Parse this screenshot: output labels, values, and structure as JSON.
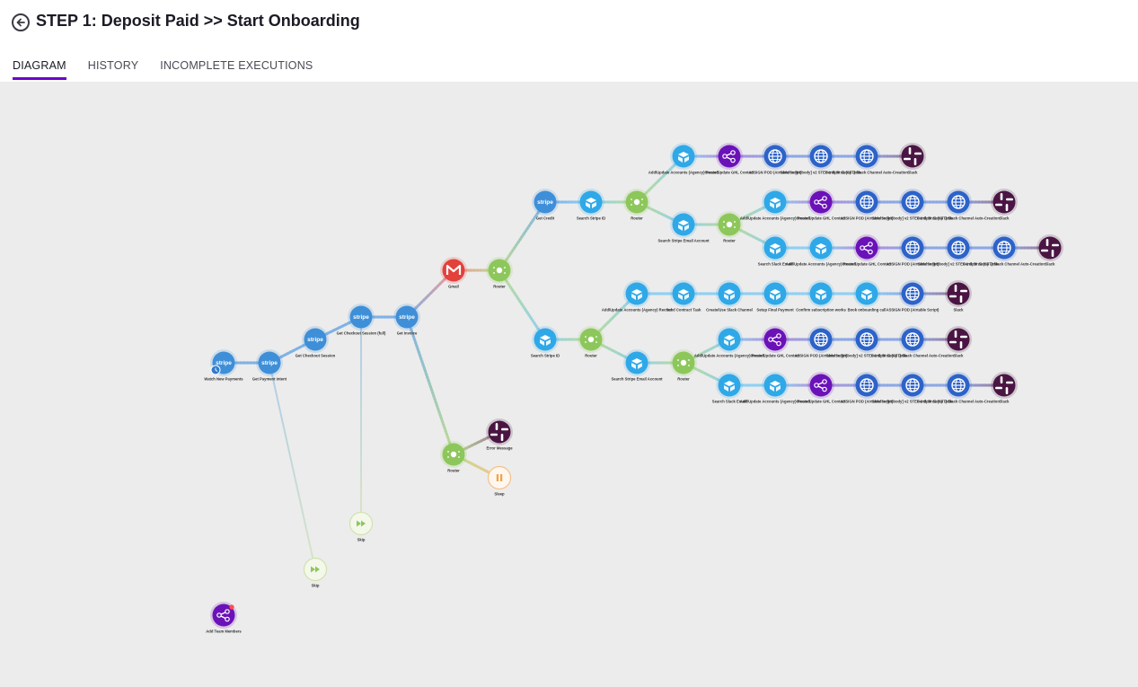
{
  "header": {
    "title": "STEP 1: Deposit Paid >> Start Onboarding",
    "back_icon": "arrow-left-circle-icon"
  },
  "tabs": [
    {
      "label": "DIAGRAM",
      "active": true
    },
    {
      "label": "HISTORY",
      "active": false
    },
    {
      "label": "INCOMPLETE EXECUTIONS",
      "active": false
    }
  ],
  "colors": {
    "accent": "#6d00cc",
    "stripe": "#3e8fd8",
    "airtable": "#2fa8e8",
    "router": "#8dc75b",
    "gmail": "#e3413b",
    "http": "#2d63c9",
    "webhook": "#6a12b8",
    "slack": "#4a1543",
    "sleep": "#f0a24a",
    "canvas_bg": "#ececec"
  },
  "diagram": {
    "nodes": [
      {
        "id": "n1",
        "app": "stripe",
        "label": "Watch New Payments",
        "trigger": true
      },
      {
        "id": "n2",
        "app": "stripe",
        "label": "Get Payment Intent"
      },
      {
        "id": "n3",
        "app": "stripe",
        "label": "Get Checkout Session"
      },
      {
        "id": "n4",
        "app": "stripe",
        "label": "Get Checkout Session (full)"
      },
      {
        "id": "n5",
        "app": "stripe",
        "label": "Get Invoice"
      },
      {
        "id": "n6",
        "app": "gmail",
        "label": "Gmail"
      },
      {
        "id": "n7",
        "app": "router",
        "label": "Router"
      },
      {
        "id": "n8",
        "app": "stripe",
        "label": "Get Credit"
      },
      {
        "id": "n9",
        "app": "airtable",
        "label": "Search Stripe ID"
      },
      {
        "id": "n10",
        "app": "router",
        "label": "Router"
      },
      {
        "id": "n11",
        "app": "airtable",
        "label": "Add/Update Accounts (Agency) Record"
      },
      {
        "id": "n12",
        "app": "webhook",
        "label": "Create/Update GHL Contact"
      },
      {
        "id": "n13",
        "app": "http",
        "label": "ASSIGN POD (Airtable Script)"
      },
      {
        "id": "n14",
        "app": "http",
        "label": "Send to [Nobody] v2 STEP 1 Split Setup Jobs"
      },
      {
        "id": "n15",
        "app": "http",
        "label": "Send to v2 (SFT) Slack Channel Auto-Creation"
      },
      {
        "id": "n16",
        "app": "slack",
        "label": "Slack"
      },
      {
        "id": "n17",
        "app": "airtable",
        "label": "Search Stripe Email Account"
      },
      {
        "id": "n18",
        "app": "router",
        "label": "Router"
      },
      {
        "id": "n19",
        "app": "airtable",
        "label": "Add/Update Accounts (Agency) Record"
      },
      {
        "id": "n20",
        "app": "webhook",
        "label": "Create/Update GHL Contact"
      },
      {
        "id": "n21",
        "app": "http",
        "label": "ASSIGN POD (Airtable Script)"
      },
      {
        "id": "n22",
        "app": "http",
        "label": "Send to [Nobody] v2 STEP 1 Split Setup Jobs"
      },
      {
        "id": "n23",
        "app": "http",
        "label": "Send to v2 (SFT) Slack Channel Auto-Creation"
      },
      {
        "id": "n24",
        "app": "slack",
        "label": "Slack"
      },
      {
        "id": "n25",
        "app": "airtable",
        "label": "Search Slack Email"
      },
      {
        "id": "n26",
        "app": "airtable",
        "label": "Add/Update Accounts (Agency) Record"
      },
      {
        "id": "n27",
        "app": "webhook",
        "label": "Create/Update GHL Contact"
      },
      {
        "id": "n28",
        "app": "http",
        "label": "ASSIGN POD (Airtable Script)"
      },
      {
        "id": "n29",
        "app": "http",
        "label": "Send to [Nobody] v2 STEP 1 Split Setup Jobs"
      },
      {
        "id": "n30",
        "app": "http",
        "label": "Send to v2 (SFT) Slack Channel Auto-Creation"
      },
      {
        "id": "n31",
        "app": "slack",
        "label": "Slack"
      },
      {
        "id": "n32",
        "app": "airtable",
        "label": "Search Stripe ID"
      },
      {
        "id": "n33",
        "app": "router",
        "label": "Router"
      },
      {
        "id": "n34",
        "app": "airtable",
        "label": "Add/Update Accounts (Agency) Record"
      },
      {
        "id": "n35",
        "app": "airtable",
        "label": "Send Contract Task"
      },
      {
        "id": "n36",
        "app": "airtable",
        "label": "Create/Use Slack Channel"
      },
      {
        "id": "n37",
        "app": "airtable",
        "label": "Setup Final Payment"
      },
      {
        "id": "n38",
        "app": "airtable",
        "label": "Confirm subscription works"
      },
      {
        "id": "n39",
        "app": "airtable",
        "label": "Book onboarding call"
      },
      {
        "id": "n40",
        "app": "http",
        "label": "ASSIGN POD (Airtable Script)"
      },
      {
        "id": "n41",
        "app": "slack",
        "label": "Slack"
      },
      {
        "id": "n42",
        "app": "airtable",
        "label": "Search Stripe Email Account"
      },
      {
        "id": "n43",
        "app": "router",
        "label": "Router"
      },
      {
        "id": "n44",
        "app": "airtable",
        "label": "Add/Update Accounts (Agency) Record"
      },
      {
        "id": "n45",
        "app": "webhook",
        "label": "Create/Update GHL Contact"
      },
      {
        "id": "n46",
        "app": "http",
        "label": "ASSIGN POD (Airtable Script)"
      },
      {
        "id": "n47",
        "app": "http",
        "label": "Send to [Nobody] v2 STEP 1 Split Setup Jobs"
      },
      {
        "id": "n48",
        "app": "http",
        "label": "Send to v2 (SFT) Slack Channel Auto-Creation"
      },
      {
        "id": "n49",
        "app": "slack",
        "label": "Slack"
      },
      {
        "id": "n50",
        "app": "airtable",
        "label": "Search Slack Email"
      },
      {
        "id": "n51",
        "app": "airtable",
        "label": "Add/Update Accounts (Agency) Record"
      },
      {
        "id": "n52",
        "app": "webhook",
        "label": "Create/Update GHL Contact"
      },
      {
        "id": "n53",
        "app": "http",
        "label": "ASSIGN POD (Airtable Script)"
      },
      {
        "id": "n54",
        "app": "http",
        "label": "Send to [Nobody] v2 STEP 1 Split Setup Jobs"
      },
      {
        "id": "n55",
        "app": "http",
        "label": "Send to v2 (SFT) Slack Channel Auto-Creation"
      },
      {
        "id": "n56",
        "app": "slack",
        "label": "Slack"
      },
      {
        "id": "n57",
        "app": "router",
        "label": "Router"
      },
      {
        "id": "n58",
        "app": "slack",
        "label": "Error Message"
      },
      {
        "id": "n59",
        "app": "sleep",
        "label": "Sleep"
      },
      {
        "id": "n60",
        "app": "skip",
        "label": "Skip"
      },
      {
        "id": "n61",
        "app": "skip",
        "label": "Skip"
      },
      {
        "id": "n62",
        "app": "webhook",
        "label": "Add Team Members",
        "badge": true
      }
    ],
    "edges": [
      [
        "n1",
        "n2"
      ],
      [
        "n2",
        "n3"
      ],
      [
        "n3",
        "n4"
      ],
      [
        "n4",
        "n5"
      ],
      [
        "n5",
        "n6"
      ],
      [
        "n6",
        "n7"
      ],
      [
        "n7",
        "n8"
      ],
      [
        "n8",
        "n9"
      ],
      [
        "n9",
        "n10"
      ],
      [
        "n10",
        "n11"
      ],
      [
        "n11",
        "n12"
      ],
      [
        "n12",
        "n13"
      ],
      [
        "n13",
        "n14"
      ],
      [
        "n14",
        "n15"
      ],
      [
        "n15",
        "n16"
      ],
      [
        "n10",
        "n17"
      ],
      [
        "n17",
        "n18"
      ],
      [
        "n18",
        "n19"
      ],
      [
        "n19",
        "n20"
      ],
      [
        "n20",
        "n21"
      ],
      [
        "n21",
        "n22"
      ],
      [
        "n22",
        "n23"
      ],
      [
        "n23",
        "n24"
      ],
      [
        "n18",
        "n25"
      ],
      [
        "n25",
        "n26"
      ],
      [
        "n26",
        "n27"
      ],
      [
        "n27",
        "n28"
      ],
      [
        "n28",
        "n29"
      ],
      [
        "n29",
        "n30"
      ],
      [
        "n30",
        "n31"
      ],
      [
        "n7",
        "n32"
      ],
      [
        "n32",
        "n33"
      ],
      [
        "n33",
        "n34"
      ],
      [
        "n34",
        "n35"
      ],
      [
        "n35",
        "n36"
      ],
      [
        "n36",
        "n37"
      ],
      [
        "n37",
        "n38"
      ],
      [
        "n38",
        "n39"
      ],
      [
        "n39",
        "n40"
      ],
      [
        "n40",
        "n41"
      ],
      [
        "n33",
        "n42"
      ],
      [
        "n42",
        "n43"
      ],
      [
        "n43",
        "n44"
      ],
      [
        "n44",
        "n45"
      ],
      [
        "n45",
        "n46"
      ],
      [
        "n46",
        "n47"
      ],
      [
        "n47",
        "n48"
      ],
      [
        "n48",
        "n49"
      ],
      [
        "n43",
        "n50"
      ],
      [
        "n50",
        "n51"
      ],
      [
        "n51",
        "n52"
      ],
      [
        "n52",
        "n53"
      ],
      [
        "n53",
        "n54"
      ],
      [
        "n54",
        "n55"
      ],
      [
        "n55",
        "n56"
      ],
      [
        "n5",
        "n57"
      ],
      [
        "n57",
        "n58"
      ],
      [
        "n57",
        "n59"
      ],
      [
        "n4",
        "n60"
      ],
      [
        "n2",
        "n61"
      ]
    ]
  }
}
